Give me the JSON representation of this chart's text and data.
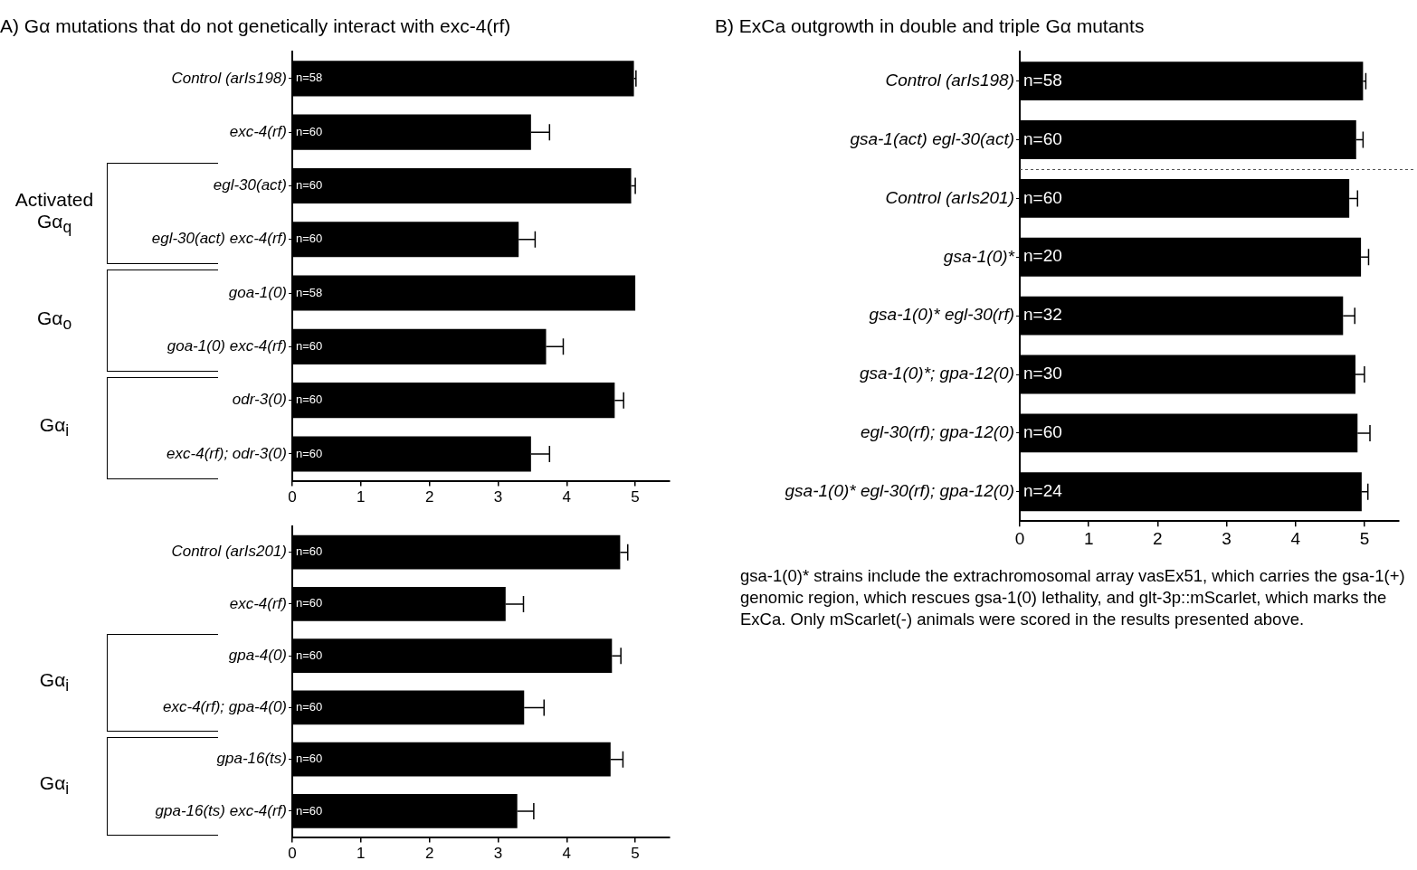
{
  "chart_data": [
    {
      "type": "bar",
      "orientation": "horizontal",
      "title": "A) Gα mutations that do not genetically interact with exc-4(rf)",
      "categories": [
        "Control (arIs198)",
        "exc-4(rf)",
        "egl-30(act)",
        "egl-30(act) exc-4(rf)",
        "goa-1(0)",
        "goa-1(0) exc-4(rf)",
        "odr-3(0)",
        "exc-4(rf); odr-3(0)"
      ],
      "values": [
        4.98,
        3.48,
        4.94,
        3.3,
        5.0,
        3.7,
        4.7,
        3.48
      ],
      "errors": [
        [
          4.98,
          5.01
        ],
        [
          3.48,
          3.75
        ],
        [
          4.94,
          5.0
        ],
        [
          3.3,
          3.54
        ],
        null,
        [
          3.7,
          3.95
        ],
        [
          4.7,
          4.83
        ],
        [
          3.48,
          3.75
        ]
      ],
      "color": "#000000",
      "xlim": [
        0,
        5.5
      ],
      "xticks": [
        0,
        1,
        2,
        3,
        4,
        5
      ],
      "grid": false,
      "legend": false,
      "annotations": [
        "Activated Gα$_{q}$",
        "Gα$_{o}$",
        "Gα$_{i}$",
        {
          "text": "n=58",
          "y": "Control (arIs198)"
        },
        {
          "text": "n=60",
          "y": "exc-4(rf)"
        },
        {
          "text": "n=60",
          "y": "egl-30(act)"
        },
        {
          "text": "n=60",
          "y": "egl-30(act) exc-4(rf)"
        },
        {
          "text": "n=58",
          "y": "goa-1(0)"
        },
        {
          "text": "n=60",
          "y": "goa-1(0) exc-4(rf)"
        },
        {
          "text": "n=60",
          "y": "odr-3(0)"
        },
        {
          "text": "n=60",
          "y": "exc-4(rf); odr-3(0)"
        }
      ]
    },
    {
      "type": "bar",
      "orientation": "horizontal",
      "categories": [
        "Control (arIs201)",
        "exc-4(rf)",
        "gpa-4(0)",
        "exc-4(rf); gpa-4(0)",
        "gpa-16(ts)",
        "gpa-16(ts) exc-4(rf)"
      ],
      "values": [
        4.78,
        3.11,
        4.66,
        3.38,
        4.64,
        3.28
      ],
      "errors": [
        [
          4.78,
          4.89
        ],
        [
          3.11,
          3.37
        ],
        [
          4.66,
          4.79
        ],
        [
          3.38,
          3.67
        ],
        [
          4.64,
          4.82
        ],
        [
          3.28,
          3.52
        ]
      ],
      "color": "#000000",
      "xlim": [
        0,
        5.5
      ],
      "xticks": [
        0,
        1,
        2,
        3,
        4,
        5
      ],
      "grid": false,
      "legend": false,
      "annotations": [
        "Gα$_{i}$",
        "Gα$_{i}$",
        {
          "text": "n=60",
          "y": "Control (arIs201)"
        },
        {
          "text": "n=60",
          "y": "exc-4(rf)"
        },
        {
          "text": "n=60",
          "y": "gpa-4(0)"
        },
        {
          "text": "n=60",
          "y": "exc-4(rf); gpa-4(0)"
        },
        {
          "text": "n=60",
          "y": "gpa-16(ts)"
        },
        {
          "text": "n=60",
          "y": "gpa-16(ts) exc-4(rf)"
        }
      ]
    },
    {
      "type": "bar",
      "orientation": "horizontal",
      "title": "B) ExCa outgrowth in double and triple Gα mutants",
      "categories": [
        "Control (arIs198)",
        "gsa-1(act) egl-30(act)",
        "Control (arIs201)",
        "gsa-1(0)*",
        "gsa-1(0)* egl-30(rf)",
        "gsa-1(0)*; gpa-12(0)",
        "egl-30(rf); gpa-12(0)",
        "gsa-1(0)* egl-30(rf); gpa-12(0)"
      ],
      "values": [
        4.98,
        4.88,
        4.78,
        4.95,
        4.69,
        4.87,
        4.9,
        4.96
      ],
      "errors": [
        [
          4.98,
          5.02
        ],
        [
          4.88,
          4.98
        ],
        [
          4.78,
          4.9
        ],
        [
          4.95,
          5.06
        ],
        [
          4.69,
          4.86
        ],
        [
          4.87,
          5.0
        ],
        [
          4.9,
          5.08
        ],
        [
          4.96,
          5.05
        ]
      ],
      "color": "#000000",
      "xlim": [
        0,
        5.5
      ],
      "xticks": [
        0,
        1,
        2,
        3,
        4,
        5
      ],
      "grid": false,
      "legend": false,
      "annotations": [
        "gsa-1(0)* strains include the extrachromosomal array vasEx51, which carries the gsa-1(+) genomic region, which rescues  gsa-1(0) lethality, and glt-3p::mScarlet, which marks the ExCa. Only mScarlet(-) animals were scored in the results presented above.",
        {
          "text": "n=58",
          "y": "Control (arIs198)"
        },
        {
          "text": "n=60",
          "y": "gsa-1(act) egl-30(act)"
        },
        {
          "text": "n=60",
          "y": "Control (arIs201)"
        },
        {
          "text": "n=20",
          "y": "gsa-1(0)*"
        },
        {
          "text": "n=32",
          "y": "gsa-1(0)* egl-30(rf)"
        },
        {
          "text": "n=30",
          "y": "gsa-1(0)*; gpa-12(0)"
        },
        {
          "text": "n=60",
          "y": "egl-30(rf); gpa-12(0)"
        },
        {
          "text": "n=24",
          "y": "gsa-1(0)* egl-30(rf); gpa-12(0)"
        }
      ]
    }
  ]
}
